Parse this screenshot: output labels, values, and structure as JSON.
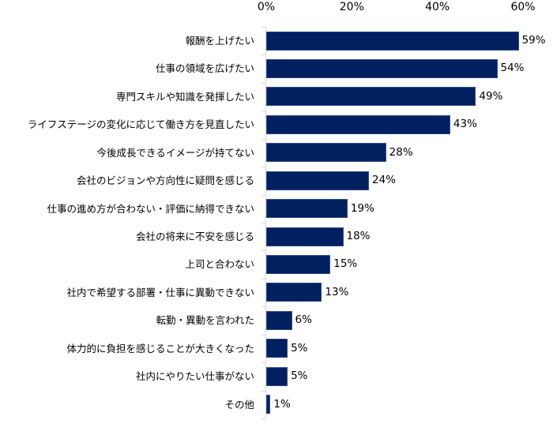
{
  "chart_data": {
    "type": "bar",
    "orientation": "horizontal",
    "title": "",
    "xlabel": "",
    "ylabel": "",
    "xlim": [
      0,
      60
    ],
    "x_ticks": [
      "0%",
      "20%",
      "40%",
      "60%"
    ],
    "x_tick_values": [
      0,
      20,
      40,
      60
    ],
    "axis_position": "top",
    "grid": false,
    "legend": null,
    "bar_color": "#002060",
    "categories": [
      "報酬を上げたい",
      "仕事の領域を広げたい",
      "専門スキルや知識を発揮したい",
      "ライフステージの変化に応じて働き方を見直したい",
      "今後成長できるイメージが持てない",
      "会社のビジョンや方向性に疑問を感じる",
      "仕事の進め方が合わない・評価に納得できない",
      "会社の将来に不安を感じる",
      "上司と合わない",
      "社内で希望する部署・仕事に異動できない",
      "転勤・異動を言われた",
      "体力的に負担を感じることが大きくなった",
      "社内にやりたい仕事がない",
      "その他"
    ],
    "values": [
      59,
      54,
      49,
      43,
      28,
      24,
      19,
      18,
      15,
      13,
      6,
      5,
      5,
      1
    ],
    "value_labels": [
      "59%",
      "54%",
      "49%",
      "43%",
      "28%",
      "24%",
      "19%",
      "18%",
      "15%",
      "13%",
      "6%",
      "5%",
      "5%",
      "1%"
    ]
  }
}
